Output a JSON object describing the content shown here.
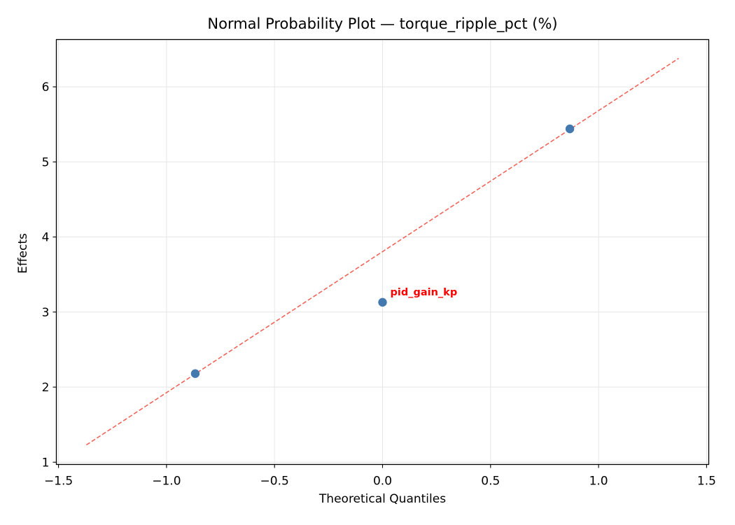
{
  "chart_data": {
    "type": "scatter",
    "title": "Normal Probability Plot — torque_ripple_pct (%)",
    "xlabel": "Theoretical Quantiles",
    "ylabel": "Effects",
    "xlim": [
      -1.51,
      1.51
    ],
    "ylim": [
      0.97,
      6.63
    ],
    "xticks": [
      -1.5,
      -1.0,
      -0.5,
      0.0,
      0.5,
      1.0,
      1.5
    ],
    "xtick_labels": [
      "−1.5",
      "−1.0",
      "−0.5",
      "0.0",
      "0.5",
      "1.0",
      "1.5"
    ],
    "yticks": [
      1,
      2,
      3,
      4,
      5,
      6
    ],
    "ytick_labels": [
      "1",
      "2",
      "3",
      "4",
      "5",
      "6"
    ],
    "grid": true,
    "legend": null,
    "series": [
      {
        "name": "effects",
        "kind": "scatter",
        "color": "#4479b0",
        "points": [
          {
            "x": -0.867,
            "y": 2.18,
            "label": null
          },
          {
            "x": 0.0,
            "y": 3.13,
            "label": "pid_gain_kp"
          },
          {
            "x": 0.867,
            "y": 5.44,
            "label": null
          }
        ]
      },
      {
        "name": "reference line",
        "kind": "line",
        "style": "dashed",
        "color": "#f0655a",
        "points": [
          {
            "x": -1.371,
            "y": 1.23
          },
          {
            "x": 1.371,
            "y": 6.38
          }
        ]
      }
    ],
    "annotations": [
      {
        "text": "pid_gain_kp",
        "x": 0.0,
        "y": 3.13,
        "color": "#ff0000",
        "bold": true
      }
    ]
  }
}
